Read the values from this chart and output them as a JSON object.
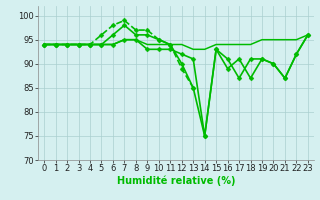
{
  "x": [
    0,
    1,
    2,
    3,
    4,
    5,
    6,
    7,
    8,
    9,
    10,
    11,
    12,
    13,
    14,
    15,
    16,
    17,
    18,
    19,
    20,
    21,
    22,
    23
  ],
  "line1": [
    94,
    94,
    94,
    94,
    94,
    96,
    98,
    99,
    97,
    97,
    95,
    94,
    89,
    85,
    null,
    null,
    null,
    null,
    null,
    null,
    null,
    null,
    null,
    null
  ],
  "line2": [
    94,
    94,
    94,
    94,
    94,
    94,
    96,
    98,
    96,
    96,
    95,
    94,
    90,
    85,
    75,
    93,
    91,
    87,
    91,
    91,
    90,
    87,
    92,
    96
  ],
  "line3": [
    94,
    94,
    94,
    94,
    94,
    94,
    94,
    95,
    95,
    93,
    93,
    93,
    92,
    91,
    75,
    93,
    89,
    91,
    87,
    91,
    90,
    87,
    92,
    96
  ],
  "line4": [
    94,
    94,
    94,
    94,
    94,
    94,
    94,
    95,
    95,
    94,
    94,
    94,
    94,
    93,
    93,
    94,
    94,
    94,
    94,
    95,
    95,
    95,
    95,
    96
  ],
  "ylim": [
    70,
    102
  ],
  "xlim": [
    -0.5,
    23.5
  ],
  "yticks": [
    70,
    75,
    80,
    85,
    90,
    95,
    100
  ],
  "xticks": [
    0,
    1,
    2,
    3,
    4,
    5,
    6,
    7,
    8,
    9,
    10,
    11,
    12,
    13,
    14,
    15,
    16,
    17,
    18,
    19,
    20,
    21,
    22,
    23
  ],
  "xlabel": "Humidité relative (%)",
  "bg_color": "#d5f0f0",
  "grid_color": "#aacfcf",
  "line_color": "#00bb00",
  "marker": "D",
  "marker_size": 2.5,
  "line_width": 1.2,
  "xlabel_fontsize": 7,
  "tick_fontsize": 6
}
